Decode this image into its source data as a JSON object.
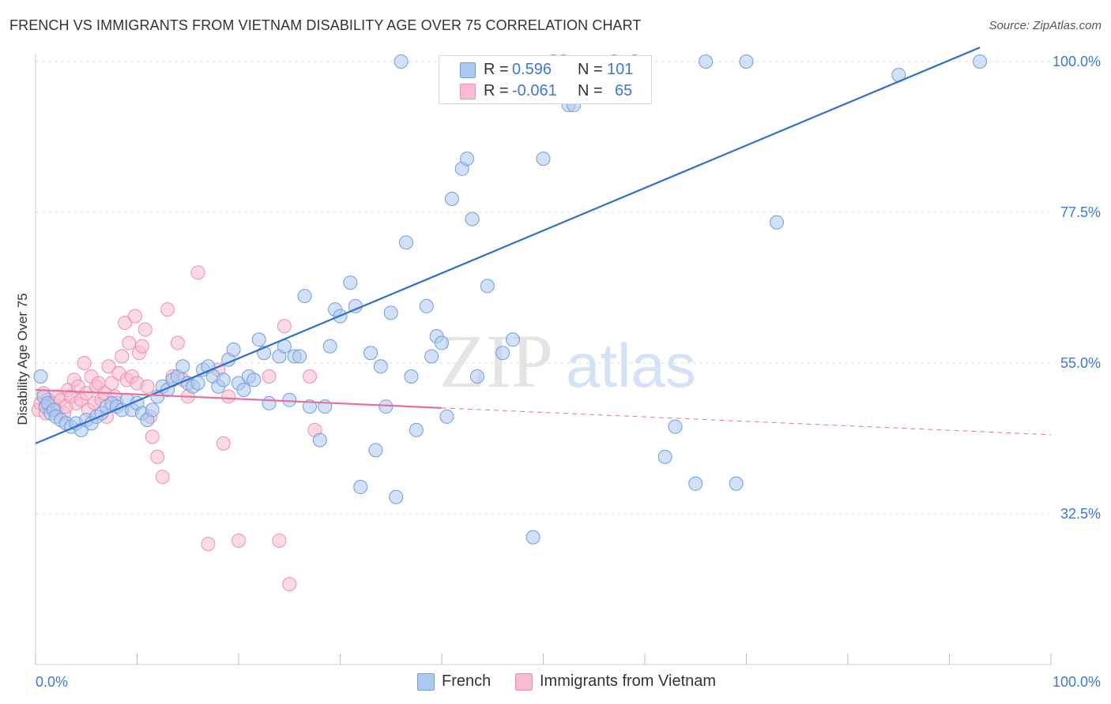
{
  "title": "FRENCH VS IMMIGRANTS FROM VIETNAM DISABILITY AGE OVER 75 CORRELATION CHART",
  "source": "Source: ZipAtlas.com",
  "watermark": {
    "zip": "ZIP",
    "atlas": "atlas"
  },
  "legend": {
    "french": {
      "r_label": "R =",
      "r_value": "0.596",
      "n_label": "N =",
      "n_value": "101"
    },
    "vietnam": {
      "r_label": "R =",
      "r_value": "-0.061",
      "n_label": "N =",
      "n_value": "65"
    }
  },
  "bottom_legend": {
    "french": "French",
    "vietnam": "Immigrants from Vietnam"
  },
  "colors": {
    "french_fill": "#aec9f0",
    "french_stroke": "#6d9ee0",
    "french_line": "#2f6fd0",
    "vietnam_fill": "#f7bccd",
    "vietnam_stroke": "#ee8fab",
    "vietnam_line": "#e8709a",
    "tick_label": "#3b78d8",
    "grid": "#dedede"
  },
  "chart_data": {
    "type": "scatter",
    "title": "FRENCH VS IMMIGRANTS FROM VIETNAM DISABILITY AGE OVER 75 CORRELATION CHART",
    "xlabel": "",
    "ylabel": "Disability Age Over 75",
    "xlim": [
      0,
      100
    ],
    "ylim": [
      10,
      100
    ],
    "x_tick_labels": [
      "0.0%",
      "100.0%"
    ],
    "y_ticks": [
      32.5,
      55.0,
      77.5,
      100.0
    ],
    "y_tick_labels": [
      "32.5%",
      "55.0%",
      "77.5%",
      "100.0%"
    ],
    "grid": "horizontal dashed",
    "legend_position": "top-center",
    "series": [
      {
        "name": "French",
        "r": 0.596,
        "n": 101,
        "trend": {
          "x": [
            0,
            93
          ],
          "y": [
            43.0,
            102.1
          ]
        },
        "points": [
          [
            0.5,
            53.0
          ],
          [
            0.8,
            50.0
          ],
          [
            1.0,
            48.5
          ],
          [
            1.2,
            49.0
          ],
          [
            1.5,
            47.5
          ],
          [
            1.8,
            48.0
          ],
          [
            2.0,
            47.0
          ],
          [
            2.5,
            46.5
          ],
          [
            3.0,
            46.0
          ],
          [
            3.5,
            45.5
          ],
          [
            4.0,
            46.0
          ],
          [
            4.5,
            45.0
          ],
          [
            5.0,
            46.5
          ],
          [
            5.5,
            46.0
          ],
          [
            6.0,
            47.0
          ],
          [
            6.5,
            47.5
          ],
          [
            7.0,
            48.5
          ],
          [
            7.5,
            49.0
          ],
          [
            8.0,
            48.5
          ],
          [
            8.5,
            48.0
          ],
          [
            9.0,
            49.5
          ],
          [
            9.5,
            48.0
          ],
          [
            10.0,
            49.0
          ],
          [
            10.5,
            47.5
          ],
          [
            11.0,
            46.5
          ],
          [
            11.5,
            48.0
          ],
          [
            12.0,
            50.0
          ],
          [
            12.5,
            51.5
          ],
          [
            13.0,
            51.0
          ],
          [
            13.5,
            52.5
          ],
          [
            14.0,
            53.0
          ],
          [
            14.5,
            54.5
          ],
          [
            15.0,
            52.0
          ],
          [
            15.5,
            51.5
          ],
          [
            16.0,
            52.0
          ],
          [
            16.5,
            54.0
          ],
          [
            17.0,
            54.5
          ],
          [
            17.5,
            53.0
          ],
          [
            18.0,
            51.5
          ],
          [
            18.5,
            52.5
          ],
          [
            19.0,
            55.5
          ],
          [
            19.5,
            57.0
          ],
          [
            20.0,
            52.0
          ],
          [
            20.5,
            51.0
          ],
          [
            21.0,
            53.0
          ],
          [
            21.5,
            52.5
          ],
          [
            22.0,
            58.5
          ],
          [
            22.5,
            56.5
          ],
          [
            23.0,
            49.0
          ],
          [
            24.0,
            56.0
          ],
          [
            24.5,
            57.5
          ],
          [
            25.0,
            49.5
          ],
          [
            25.5,
            56.0
          ],
          [
            26.0,
            56.0
          ],
          [
            26.5,
            65.0
          ],
          [
            27.0,
            48.5
          ],
          [
            28.0,
            43.5
          ],
          [
            28.5,
            48.5
          ],
          [
            29.0,
            57.5
          ],
          [
            29.5,
            63.0
          ],
          [
            30.0,
            62.0
          ],
          [
            31.0,
            67.0
          ],
          [
            31.5,
            63.5
          ],
          [
            32.0,
            36.5
          ],
          [
            33.0,
            56.5
          ],
          [
            33.5,
            42.0
          ],
          [
            34.0,
            54.5
          ],
          [
            34.5,
            48.5
          ],
          [
            35.0,
            62.5
          ],
          [
            35.5,
            35.0
          ],
          [
            36.0,
            100.0
          ],
          [
            36.5,
            73.0
          ],
          [
            37.0,
            53.0
          ],
          [
            37.5,
            45.0
          ],
          [
            38.5,
            63.5
          ],
          [
            39.0,
            56.0
          ],
          [
            39.5,
            59.0
          ],
          [
            40.0,
            58.0
          ],
          [
            40.5,
            47.0
          ],
          [
            41.0,
            79.5
          ],
          [
            42.0,
            84.0
          ],
          [
            42.5,
            85.5
          ],
          [
            43.0,
            76.5
          ],
          [
            43.5,
            53.0
          ],
          [
            44.5,
            66.5
          ],
          [
            46.0,
            56.5
          ],
          [
            47.0,
            58.5
          ],
          [
            49.0,
            29.0
          ],
          [
            50.0,
            85.5
          ],
          [
            51.0,
            100.0
          ],
          [
            52.0,
            100.0
          ],
          [
            52.5,
            93.5
          ],
          [
            53.0,
            93.5
          ],
          [
            57.0,
            100.0
          ],
          [
            58.0,
            98.0
          ],
          [
            59.0,
            100.0
          ],
          [
            62.0,
            41.0
          ],
          [
            63.0,
            45.5
          ],
          [
            65.0,
            37.0
          ],
          [
            66.0,
            100.0
          ],
          [
            69.0,
            37.0
          ],
          [
            70.0,
            100.0
          ],
          [
            73.0,
            76.0
          ],
          [
            85.0,
            98.0
          ],
          [
            93.0,
            100.0
          ]
        ]
      },
      {
        "name": "Immigrants from Vietnam",
        "r": -0.061,
        "n": 65,
        "trend": {
          "x": [
            0,
            40
          ],
          "y": [
            51.0,
            48.3
          ]
        },
        "trend_dashed": {
          "x": [
            40,
            100
          ],
          "y": [
            48.3,
            44.3
          ]
        },
        "points": [
          [
            0.3,
            48.0
          ],
          [
            0.5,
            49.0
          ],
          [
            0.8,
            50.5
          ],
          [
            1.0,
            47.5
          ],
          [
            1.2,
            49.5
          ],
          [
            1.5,
            48.5
          ],
          [
            1.8,
            49.0
          ],
          [
            2.0,
            48.0
          ],
          [
            2.2,
            50.0
          ],
          [
            2.5,
            49.5
          ],
          [
            2.8,
            47.5
          ],
          [
            3.0,
            48.5
          ],
          [
            3.2,
            51.0
          ],
          [
            3.5,
            50.0
          ],
          [
            3.8,
            52.5
          ],
          [
            4.0,
            49.0
          ],
          [
            4.2,
            51.5
          ],
          [
            4.5,
            49.5
          ],
          [
            4.8,
            55.0
          ],
          [
            5.0,
            50.5
          ],
          [
            5.2,
            48.0
          ],
          [
            5.5,
            53.0
          ],
          [
            5.8,
            49.0
          ],
          [
            6.0,
            51.5
          ],
          [
            6.2,
            52.0
          ],
          [
            6.5,
            49.5
          ],
          [
            6.8,
            50.5
          ],
          [
            7.0,
            47.0
          ],
          [
            7.2,
            54.5
          ],
          [
            7.5,
            52.0
          ],
          [
            7.8,
            50.0
          ],
          [
            8.0,
            49.0
          ],
          [
            8.2,
            53.5
          ],
          [
            8.5,
            56.0
          ],
          [
            8.8,
            61.0
          ],
          [
            9.0,
            52.5
          ],
          [
            9.2,
            58.0
          ],
          [
            9.5,
            53.0
          ],
          [
            9.8,
            62.0
          ],
          [
            10.0,
            52.0
          ],
          [
            10.2,
            56.5
          ],
          [
            10.5,
            57.5
          ],
          [
            10.8,
            60.0
          ],
          [
            11.0,
            51.5
          ],
          [
            11.3,
            47.0
          ],
          [
            11.5,
            44.0
          ],
          [
            12.0,
            41.0
          ],
          [
            12.5,
            38.0
          ],
          [
            13.0,
            63.0
          ],
          [
            13.5,
            53.0
          ],
          [
            14.0,
            58.0
          ],
          [
            14.5,
            52.5
          ],
          [
            15.0,
            50.0
          ],
          [
            16.0,
            68.5
          ],
          [
            17.0,
            28.0
          ],
          [
            18.0,
            54.0
          ],
          [
            18.5,
            43.0
          ],
          [
            19.0,
            50.0
          ],
          [
            20.0,
            28.5
          ],
          [
            23.0,
            53.0
          ],
          [
            24.0,
            28.5
          ],
          [
            24.5,
            60.5
          ],
          [
            25.0,
            22.0
          ],
          [
            27.0,
            53.0
          ],
          [
            27.5,
            45.0
          ]
        ]
      }
    ]
  }
}
